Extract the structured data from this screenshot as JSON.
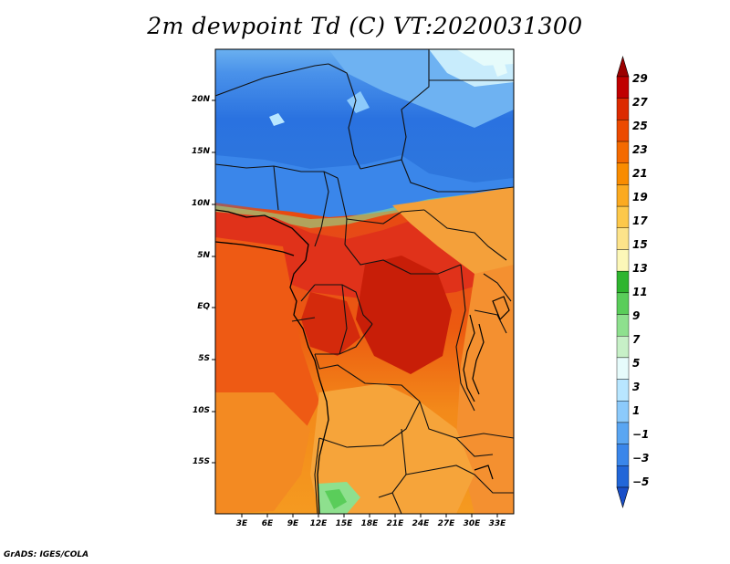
{
  "title": "2m dewpoint Td (C) VT:2020031300",
  "credit": "GrADS: IGES/COLA",
  "lat_labels": [
    "20N",
    "15N",
    "10N",
    "5N",
    "EQ",
    "5S",
    "10S",
    "15S"
  ],
  "lon_labels": [
    "3E",
    "6E",
    "9E",
    "12E",
    "15E",
    "18E",
    "21E",
    "24E",
    "27E",
    "30E",
    "33E"
  ],
  "colorbar": {
    "labels": [
      "29",
      "27",
      "25",
      "23",
      "21",
      "19",
      "17",
      "15",
      "13",
      "11",
      "9",
      "7",
      "5",
      "3",
      "1",
      "−1",
      "−3",
      "−5"
    ],
    "colors": [
      "#9b0000",
      "#c00000",
      "#dc2a00",
      "#ec4a00",
      "#f46a00",
      "#f98c00",
      "#fbaa20",
      "#fdc84a",
      "#fde38a",
      "#fcf7b8",
      "#2fb52f",
      "#5acd5a",
      "#8ee08e",
      "#c7f0c7",
      "#e6fbfb",
      "#b8e6ff",
      "#8ccafb",
      "#5aa6f2",
      "#3a86ea",
      "#2266d8",
      "#1a4fc8"
    ]
  }
}
